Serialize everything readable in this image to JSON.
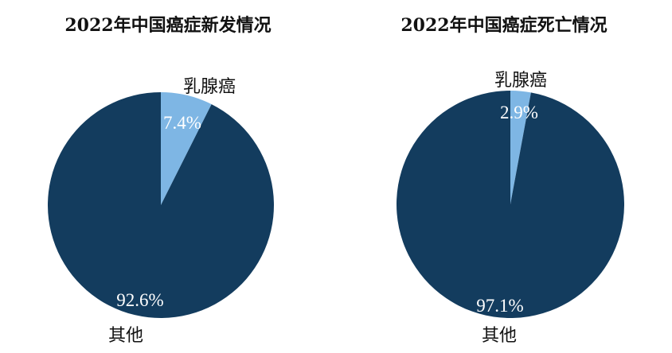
{
  "colors": {
    "primary": "#133c5e",
    "secondary": "#7eb6e4",
    "text": "#111111"
  },
  "chart_data": [
    {
      "type": "pie",
      "title": "2022年中国癌症新发情况",
      "slices": [
        {
          "label": "乳腺癌",
          "value": 7.4,
          "display": "7.4%",
          "color": "#7eb6e4"
        },
        {
          "label": "其他",
          "value": 92.6,
          "display": "92.6%",
          "color": "#133c5e"
        }
      ]
    },
    {
      "type": "pie",
      "title": "2022年中国癌症死亡情况",
      "slices": [
        {
          "label": "乳腺癌",
          "value": 2.9,
          "display": "2.9%",
          "color": "#7eb6e4"
        },
        {
          "label": "其他",
          "value": 97.1,
          "display": "97.1%",
          "color": "#133c5e"
        }
      ]
    }
  ]
}
